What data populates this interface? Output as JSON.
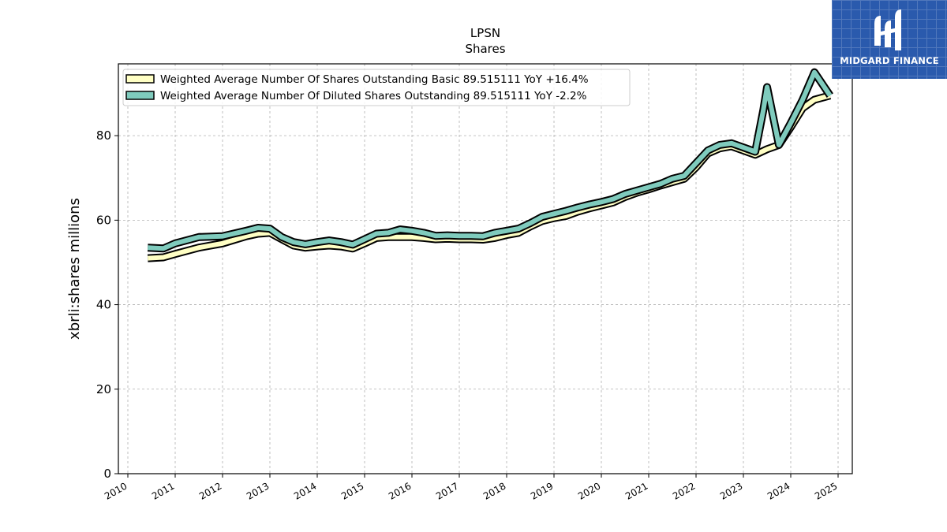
{
  "chart_data": {
    "type": "line",
    "title": "LPSN",
    "subtitle": "Shares",
    "ylabel": "xbrli:shares millions",
    "xlabel": "",
    "xlim": [
      2009.8,
      2025.3
    ],
    "ylim": [
      0,
      97
    ],
    "x_ticks": [
      "2010",
      "2011",
      "2012",
      "2013",
      "2014",
      "2015",
      "2016",
      "2017",
      "2018",
      "2019",
      "2020",
      "2021",
      "2022",
      "2023",
      "2024",
      "2025"
    ],
    "y_ticks": [
      "0",
      "20",
      "40",
      "60",
      "80"
    ],
    "grid": true,
    "legend_position": "top-left",
    "series": [
      {
        "name": "Weighted Average Number Of Shares Outstanding Basic  89.515111 YoY +16.4%",
        "color": "#ffffc4",
        "x": [
          2010.42,
          2010.75,
          2011.0,
          2011.5,
          2012.0,
          2012.5,
          2012.75,
          2013.0,
          2013.25,
          2013.5,
          2013.75,
          2014.0,
          2014.25,
          2014.5,
          2014.75,
          2015.0,
          2015.25,
          2015.5,
          2015.75,
          2016.0,
          2016.25,
          2016.5,
          2016.75,
          2017.0,
          2017.25,
          2017.5,
          2017.75,
          2018.0,
          2018.25,
          2018.5,
          2018.75,
          2019.0,
          2019.25,
          2019.5,
          2019.75,
          2020.0,
          2020.25,
          2020.5,
          2020.75,
          2021.0,
          2021.25,
          2021.5,
          2021.75,
          2022.0,
          2022.25,
          2022.5,
          2022.75,
          2023.0,
          2023.25,
          2023.5,
          2023.75,
          2024.0,
          2024.25,
          2024.5,
          2024.83
        ],
        "values": [
          51.0,
          51.2,
          52.0,
          53.5,
          54.5,
          56.2,
          56.8,
          57.0,
          55.5,
          54.0,
          53.5,
          53.8,
          54.0,
          53.8,
          53.3,
          54.5,
          55.8,
          56.0,
          56.0,
          56.0,
          55.8,
          55.5,
          55.6,
          55.5,
          55.5,
          55.4,
          55.8,
          56.5,
          57.0,
          58.5,
          59.8,
          60.5,
          61.0,
          62.0,
          62.8,
          63.5,
          64.2,
          65.5,
          66.5,
          67.3,
          68.2,
          69.0,
          69.8,
          72.5,
          75.8,
          77.0,
          77.5,
          76.5,
          75.5,
          76.8,
          77.8,
          82.0,
          86.5,
          88.5,
          89.5
        ]
      },
      {
        "name": "Weighted Average Number Of Diluted Shares Outstanding  89.515111 YoY -2.2%",
        "color": "#7fcbbd",
        "x": [
          2010.42,
          2010.75,
          2011.0,
          2011.5,
          2012.0,
          2012.5,
          2012.75,
          2013.0,
          2013.25,
          2013.5,
          2013.75,
          2014.0,
          2014.25,
          2014.5,
          2014.75,
          2015.0,
          2015.25,
          2015.5,
          2015.75,
          2016.0,
          2016.25,
          2016.5,
          2016.75,
          2017.0,
          2017.25,
          2017.5,
          2017.75,
          2018.0,
          2018.25,
          2018.5,
          2018.75,
          2019.0,
          2019.25,
          2019.5,
          2019.75,
          2020.0,
          2020.25,
          2020.5,
          2020.75,
          2021.0,
          2021.25,
          2021.5,
          2021.75,
          2022.0,
          2022.25,
          2022.5,
          2022.75,
          2023.0,
          2023.25,
          2023.42,
          2023.5,
          2023.75,
          2024.0,
          2024.25,
          2024.5,
          2024.83
        ],
        "values": [
          53.5,
          53.3,
          54.5,
          56.0,
          56.2,
          57.5,
          58.2,
          58.0,
          56.0,
          54.8,
          54.3,
          54.8,
          55.2,
          54.8,
          54.2,
          55.5,
          56.8,
          57.0,
          57.8,
          57.5,
          57.0,
          56.3,
          56.4,
          56.3,
          56.3,
          56.2,
          57.0,
          57.5,
          58.0,
          59.3,
          60.8,
          61.5,
          62.2,
          63.0,
          63.7,
          64.3,
          65.0,
          66.2,
          67.0,
          67.8,
          68.6,
          69.8,
          70.5,
          73.5,
          76.5,
          77.8,
          78.2,
          77.2,
          76.2,
          86.0,
          91.5,
          77.8,
          83.0,
          88.5,
          95.0,
          89.5
        ]
      }
    ]
  },
  "logo": {
    "text": "MIDGARD FINANCE"
  }
}
